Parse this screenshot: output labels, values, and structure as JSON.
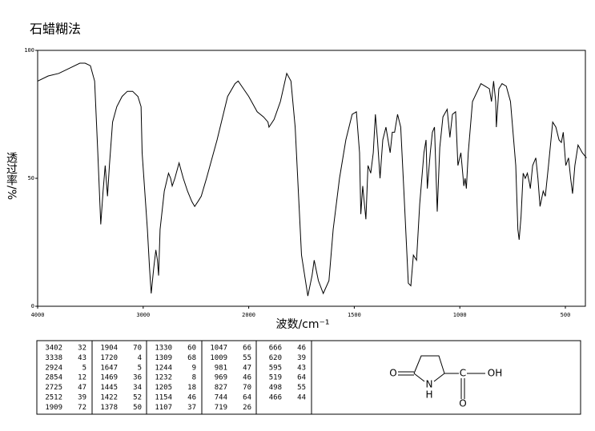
{
  "chart_data": {
    "type": "line",
    "title": "石蜡糊法",
    "x_label": "波数/cm⁻¹",
    "y_label": "透过率/%",
    "color": "#000000",
    "xlim": [
      4000,
      400
    ],
    "xticks": [
      4000,
      3000,
      2000,
      1500,
      1000,
      500
    ],
    "ylim": [
      0,
      100
    ],
    "yticks": [
      0,
      50,
      100
    ],
    "x": [
      4000,
      3900,
      3800,
      3700,
      3600,
      3550,
      3500,
      3460,
      3430,
      3402,
      3380,
      3360,
      3338,
      3320,
      3290,
      3250,
      3200,
      3150,
      3100,
      3050,
      3020,
      3010,
      2960,
      2940,
      2924,
      2900,
      2880,
      2865,
      2854,
      2840,
      2800,
      2760,
      2740,
      2725,
      2700,
      2660,
      2620,
      2580,
      2540,
      2512,
      2480,
      2450,
      2400,
      2300,
      2200,
      2130,
      2100,
      2050,
      2000,
      1960,
      1930,
      1909,
      1904,
      1880,
      1850,
      1820,
      1800,
      1780,
      1750,
      1720,
      1700,
      1690,
      1670,
      1647,
      1620,
      1600,
      1570,
      1540,
      1510,
      1490,
      1475,
      1469,
      1460,
      1452,
      1445,
      1435,
      1422,
      1410,
      1400,
      1390,
      1378,
      1365,
      1350,
      1330,
      1320,
      1309,
      1295,
      1280,
      1265,
      1244,
      1232,
      1220,
      1205,
      1190,
      1170,
      1160,
      1154,
      1140,
      1130,
      1120,
      1107,
      1095,
      1080,
      1060,
      1047,
      1035,
      1020,
      1009,
      995,
      981,
      975,
      969,
      960,
      940,
      900,
      880,
      860,
      850,
      840,
      830,
      827,
      815,
      800,
      780,
      760,
      750,
      744,
      735,
      725,
      719,
      710,
      700,
      690,
      680,
      670,
      666,
      655,
      640,
      630,
      620,
      605,
      595,
      580,
      560,
      545,
      530,
      519,
      510,
      498,
      485,
      475,
      466,
      455,
      440,
      420,
      400
    ],
    "values": [
      88,
      90,
      91,
      93,
      95,
      95,
      94,
      88,
      60,
      32,
      45,
      55,
      43,
      55,
      72,
      78,
      82,
      84,
      84,
      82,
      78,
      60,
      30,
      15,
      5,
      15,
      22,
      18,
      12,
      30,
      45,
      52,
      50,
      47,
      50,
      56,
      50,
      45,
      41,
      39,
      41,
      43,
      50,
      65,
      82,
      87,
      88,
      85,
      82,
      76,
      74,
      72,
      70,
      73,
      80,
      91,
      88,
      70,
      20,
      4,
      12,
      18,
      10,
      5,
      10,
      30,
      50,
      65,
      75,
      76,
      60,
      36,
      47,
      40,
      34,
      55,
      52,
      60,
      75,
      65,
      50,
      65,
      70,
      60,
      68,
      68,
      75,
      70,
      45,
      9,
      8,
      20,
      18,
      40,
      60,
      65,
      46,
      60,
      68,
      70,
      37,
      62,
      74,
      77,
      66,
      75,
      76,
      55,
      60,
      47,
      50,
      46,
      60,
      80,
      87,
      86,
      85,
      80,
      88,
      80,
      70,
      85,
      87,
      86,
      80,
      70,
      64,
      55,
      30,
      26,
      35,
      52,
      50,
      52,
      48,
      46,
      55,
      58,
      50,
      39,
      45,
      43,
      55,
      72,
      70,
      65,
      64,
      68,
      55,
      58,
      50,
      44,
      55,
      63,
      60,
      58
    ]
  },
  "peak_table": [
    [
      [
        3402,
        32
      ],
      [
        3338,
        43
      ],
      [
        2924,
        5
      ],
      [
        2854,
        12
      ],
      [
        2725,
        47
      ],
      [
        2512,
        39
      ],
      [
        1909,
        72
      ]
    ],
    [
      [
        1904,
        70
      ],
      [
        1720,
        4
      ],
      [
        1647,
        5
      ],
      [
        1469,
        36
      ],
      [
        1445,
        34
      ],
      [
        1422,
        52
      ],
      [
        1378,
        50
      ]
    ],
    [
      [
        1330,
        60
      ],
      [
        1309,
        68
      ],
      [
        1244,
        9
      ],
      [
        1232,
        8
      ],
      [
        1205,
        18
      ],
      [
        1154,
        46
      ],
      [
        1107,
        37
      ]
    ],
    [
      [
        1047,
        66
      ],
      [
        1009,
        55
      ],
      [
        981,
        47
      ],
      [
        969,
        46
      ],
      [
        827,
        70
      ],
      [
        744,
        64
      ],
      [
        719,
        26
      ]
    ],
    [
      [
        666,
        46
      ],
      [
        620,
        39
      ],
      [
        595,
        43
      ],
      [
        519,
        64
      ],
      [
        498,
        55
      ],
      [
        466,
        44
      ]
    ]
  ],
  "structure": {
    "atoms": [
      "O",
      "N",
      "H",
      "C",
      "OH",
      "O"
    ]
  }
}
